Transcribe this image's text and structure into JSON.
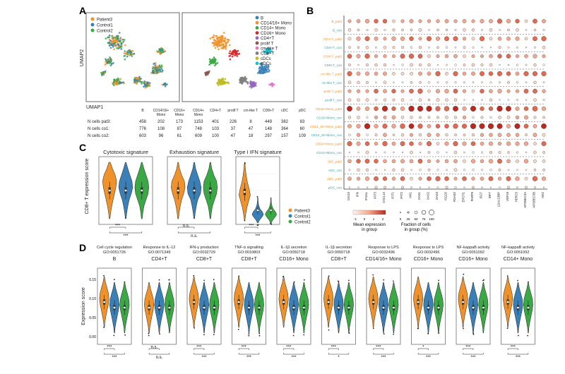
{
  "panels": {
    "A": "A",
    "B": "B",
    "C": "C",
    "D": "D"
  },
  "panelA": {
    "legend_left": [
      {
        "label": "Patient3",
        "color": "#f0922b"
      },
      {
        "label": "Control1",
        "color": "#3a7fb6"
      },
      {
        "label": "Control2",
        "color": "#3aa845"
      }
    ],
    "legend_right": [
      {
        "label": "B",
        "color": "#3a7fb6"
      },
      {
        "label": "CD14/16+ Mono",
        "color": "#f0922b"
      },
      {
        "label": "CD14+ Mono",
        "color": "#3aa845"
      },
      {
        "label": "CD16+ Mono",
        "color": "#d62728"
      },
      {
        "label": "CD4+T",
        "color": "#9467bd"
      },
      {
        "label": "prolif T",
        "color": "#8c564b"
      },
      {
        "label": "cm-like T",
        "color": "#e377c2"
      },
      {
        "label": "CD8+T",
        "color": "#7f7f7f"
      },
      {
        "label": "cDCs",
        "color": "#bcbd22"
      },
      {
        "label": "pDCs",
        "color": "#17becf"
      }
    ],
    "ylabel": "UMAP2",
    "xlabel": "UMAP1",
    "table": {
      "headers": [
        "B",
        "CD14/16+ Mono",
        "CD16+ Mono",
        "CD14+ Mono",
        "CD4+T",
        "prolif T",
        "cm-like T",
        "CD8+T",
        "cDC",
        "pDC"
      ],
      "rows": [
        {
          "label": "N cells pat3:",
          "values": [
            "458",
            "202",
            "173",
            "1153",
            "401",
            "226",
            "8",
            "449",
            "382",
            "83"
          ]
        },
        {
          "label": "N cells co1:",
          "values": [
            "776",
            "108",
            "87",
            "748",
            "103",
            "37",
            "47",
            "148",
            "364",
            "60"
          ]
        },
        {
          "label": "N cells co2:",
          "values": [
            "603",
            "96",
            "61",
            "609",
            "100",
            "47",
            "18",
            "297",
            "157",
            "109"
          ]
        }
      ]
    }
  },
  "panelB": {
    "rows": [
      {
        "label": "B_pat3",
        "color": "#f0922b"
      },
      {
        "label": "B_con",
        "color": "#3aa0a8"
      },
      {
        "label": "CD4+T_pat3",
        "color": "#f0922b"
      },
      {
        "label": "CD4+T_con",
        "color": "#3aa0a8"
      },
      {
        "label": "CD8+T_pat3",
        "color": "#f0922b"
      },
      {
        "label": "CD8+T_con",
        "color": "#3aa0a8"
      },
      {
        "label": "cm-like T_pat3",
        "color": "#f0922b"
      },
      {
        "label": "cm-like T_con",
        "color": "#3aa0a8"
      },
      {
        "label": "prolif T_pat3",
        "color": "#f0922b"
      },
      {
        "label": "prolif T_con",
        "color": "#3aa0a8"
      },
      {
        "label": "CD16+Mono_pat3",
        "color": "#f0922b"
      },
      {
        "label": "CD16+Mono_con",
        "color": "#3aa0a8"
      },
      {
        "label": "CD14_16+Mono_pat3",
        "color": "#f0922b"
      },
      {
        "label": "CD14_16+Mono_con",
        "color": "#3aa0a8"
      },
      {
        "label": "CD14+Mono_pat3",
        "color": "#f0922b"
      },
      {
        "label": "CD14+Mono_con",
        "color": "#3aa0a8"
      },
      {
        "label": "cDC_pat3",
        "color": "#f0922b"
      },
      {
        "label": "cDC_con",
        "color": "#3aa0a8"
      },
      {
        "label": "pDC_pat3",
        "color": "#f0922b"
      },
      {
        "label": "pDC_con",
        "color": "#3aa0a8"
      }
    ],
    "genes": [
      "ISG15",
      "IFI6",
      "IFI44L",
      "IFIT3",
      "CXCL10",
      "IFIT1",
      "IFIT2",
      "MX1",
      "OAS1",
      "OAS2",
      "OAS3",
      "ISG20",
      "RSAD2",
      "EPSTI1",
      "PARP9",
      "IFI27",
      "IRF7",
      "LGALS3BP",
      "USP18",
      "HERC5",
      "APOBEC3A",
      "APOBEC3B",
      "MX2"
    ],
    "legend_color_title": "Mean expression\nin group",
    "legend_color_ticks": [
      "-1",
      "0",
      "1",
      "2"
    ],
    "legend_size_title": "Fraction of cells\nin group (%)",
    "legend_size_ticks": [
      "0",
      "25",
      "50",
      "75",
      "100"
    ]
  },
  "panelC": {
    "ylabel": "CD8+ T expression score",
    "plots": [
      {
        "title": "Cytotoxic signature",
        "sig": [
          "***",
          "***"
        ]
      },
      {
        "title": "Exhaustion signature",
        "sig": [
          "n.s.",
          "n.s."
        ]
      },
      {
        "title": "Type I IFN signature",
        "sig": [
          "***",
          "***"
        ]
      }
    ],
    "legend": [
      {
        "label": "Patient3",
        "color": "#f0922b"
      },
      {
        "label": "Control1",
        "color": "#3a7fb6"
      },
      {
        "label": "Control2",
        "color": "#3aa845"
      }
    ]
  },
  "panelD": {
    "ylabel": "Expression score",
    "plots": [
      {
        "title": "Cell cycle regulation",
        "go": "GO:0051726",
        "cell": "B",
        "sig": [
          "***",
          "***"
        ]
      },
      {
        "title": "Response to IL-12",
        "go": "GO:0071349",
        "cell": "CD4+T",
        "sig": [
          "n.s.",
          "n.s."
        ]
      },
      {
        "title": "IFN-γ production",
        "go": "GO:0032729",
        "cell": "CD8+T",
        "sig": [
          "***",
          "***"
        ]
      },
      {
        "title": "TNF-α signalling",
        "go": "GO:0010803",
        "cell": "CD8+T",
        "sig": [
          "***",
          "***"
        ]
      },
      {
        "title": "IL-1β secretion",
        "go": "GO:0050718",
        "cell": "CD16+ Mono",
        "sig": [
          "***",
          "***"
        ]
      },
      {
        "title": "IL-1β secretion",
        "go": "GO:0050718",
        "cell": "CD8+T",
        "sig": [
          "***",
          "*"
        ]
      },
      {
        "title": "Response to LPS",
        "go": "GO:0032496",
        "cell": "CD14/16+ Mono",
        "sig": [
          "***",
          "***"
        ]
      },
      {
        "title": "Response to LPS",
        "go": "GO:0032496",
        "cell": "CD16+ Mono",
        "sig": [
          "*",
          "***"
        ]
      },
      {
        "title": "NF-kappaB activity",
        "go": "GO:0051092",
        "cell": "CD16+ Mono",
        "sig": [
          "***",
          "***"
        ]
      },
      {
        "title": "NF-kappaB activity",
        "go": "GO:0051092",
        "cell": "CD14+ Mono",
        "sig": [
          "***",
          "***"
        ]
      }
    ],
    "first_yticks": [
      "0.15",
      "0.10",
      "0.05",
      "0.00"
    ]
  },
  "colors": {
    "patient": "#f0922b",
    "control1": "#3a7fb6",
    "control2": "#3aa845",
    "dot_high": "#b22222",
    "dot_low": "#fbe3e3"
  }
}
